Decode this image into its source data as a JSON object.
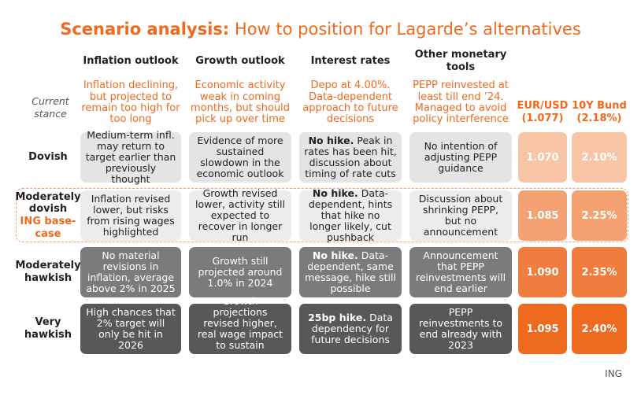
{
  "header": {
    "title_bold": "Scenario analysis:",
    "title": "How to position for Lagarde’s alternatives"
  },
  "columns": [
    "Inflation outlook",
    "Growth outlook",
    "Interest rates",
    "Other monetary tools"
  ],
  "market_columns": [
    {
      "name": "EUR/USD",
      "current": "(1.077)"
    },
    {
      "name": "10Y Bund",
      "current": "(2.18%)"
    }
  ],
  "current_stance": {
    "label": "Current stance",
    "cells": [
      "Inflation declining, but projected to remain too high for too long",
      "Economic activity weak in coming months, but should pick up over time",
      "Depo at 4.00%. Data-dependent approach to future decisions",
      "PEPP reinvested at least till end ’24. Managed to avoid policy interference"
    ]
  },
  "rows": [
    {
      "label": "Dovish",
      "cells": [
        {
          "text": "Medium-term infl. may return to target earlier than previously thought"
        },
        {
          "text": "Evidence of more sustained slowdown in the economic outlook"
        },
        {
          "bold": "No hike.",
          "text": "Peak in rates has been hit, discussion about timing of rate cuts"
        },
        {
          "text": "No intention of adjusting PEPP guidance"
        }
      ],
      "markets": [
        "1.070",
        "2.10%"
      ]
    },
    {
      "label": "Moderately dovish",
      "tag": "ING base-case",
      "cells": [
        {
          "text": "Inflation revised lower, but risks from rising wages highlighted"
        },
        {
          "text": "Growth revised lower, activity still expected to recover in longer run"
        },
        {
          "bold": "No hike.",
          "text": "Data-dependent, hints that hike no longer likely, cut pushback"
        },
        {
          "text": "Discussion about shrinking PEPP, but no announcement"
        }
      ],
      "markets": [
        "1.085",
        "2.25%"
      ]
    },
    {
      "label": "Moderately hawkish",
      "cells": [
        {
          "text": "No material revisions in inflation, average above 2% in 2025"
        },
        {
          "text": "Growth still projected around 1.0% in 2024"
        },
        {
          "bold": "No hike.",
          "text": "Data-dependent, same message, hike still possible"
        },
        {
          "text": "Announcement that PEPP reinvestments will end earlier"
        }
      ],
      "markets": [
        "1.090",
        "2.35%"
      ]
    },
    {
      "label": "Very hawkish",
      "cells": [
        {
          "text": "High chances that 2% target will only be hit in 2026"
        },
        {
          "text": "Growth projections revised higher, real wage impact to sustain economy"
        },
        {
          "bold": "25bp hike.",
          "text": "Data dependency for future decisions"
        },
        {
          "text": "PEPP reinvestments to end already with 2023"
        }
      ],
      "markets": [
        "1.095",
        "2.40%"
      ]
    }
  ],
  "source": "ING"
}
